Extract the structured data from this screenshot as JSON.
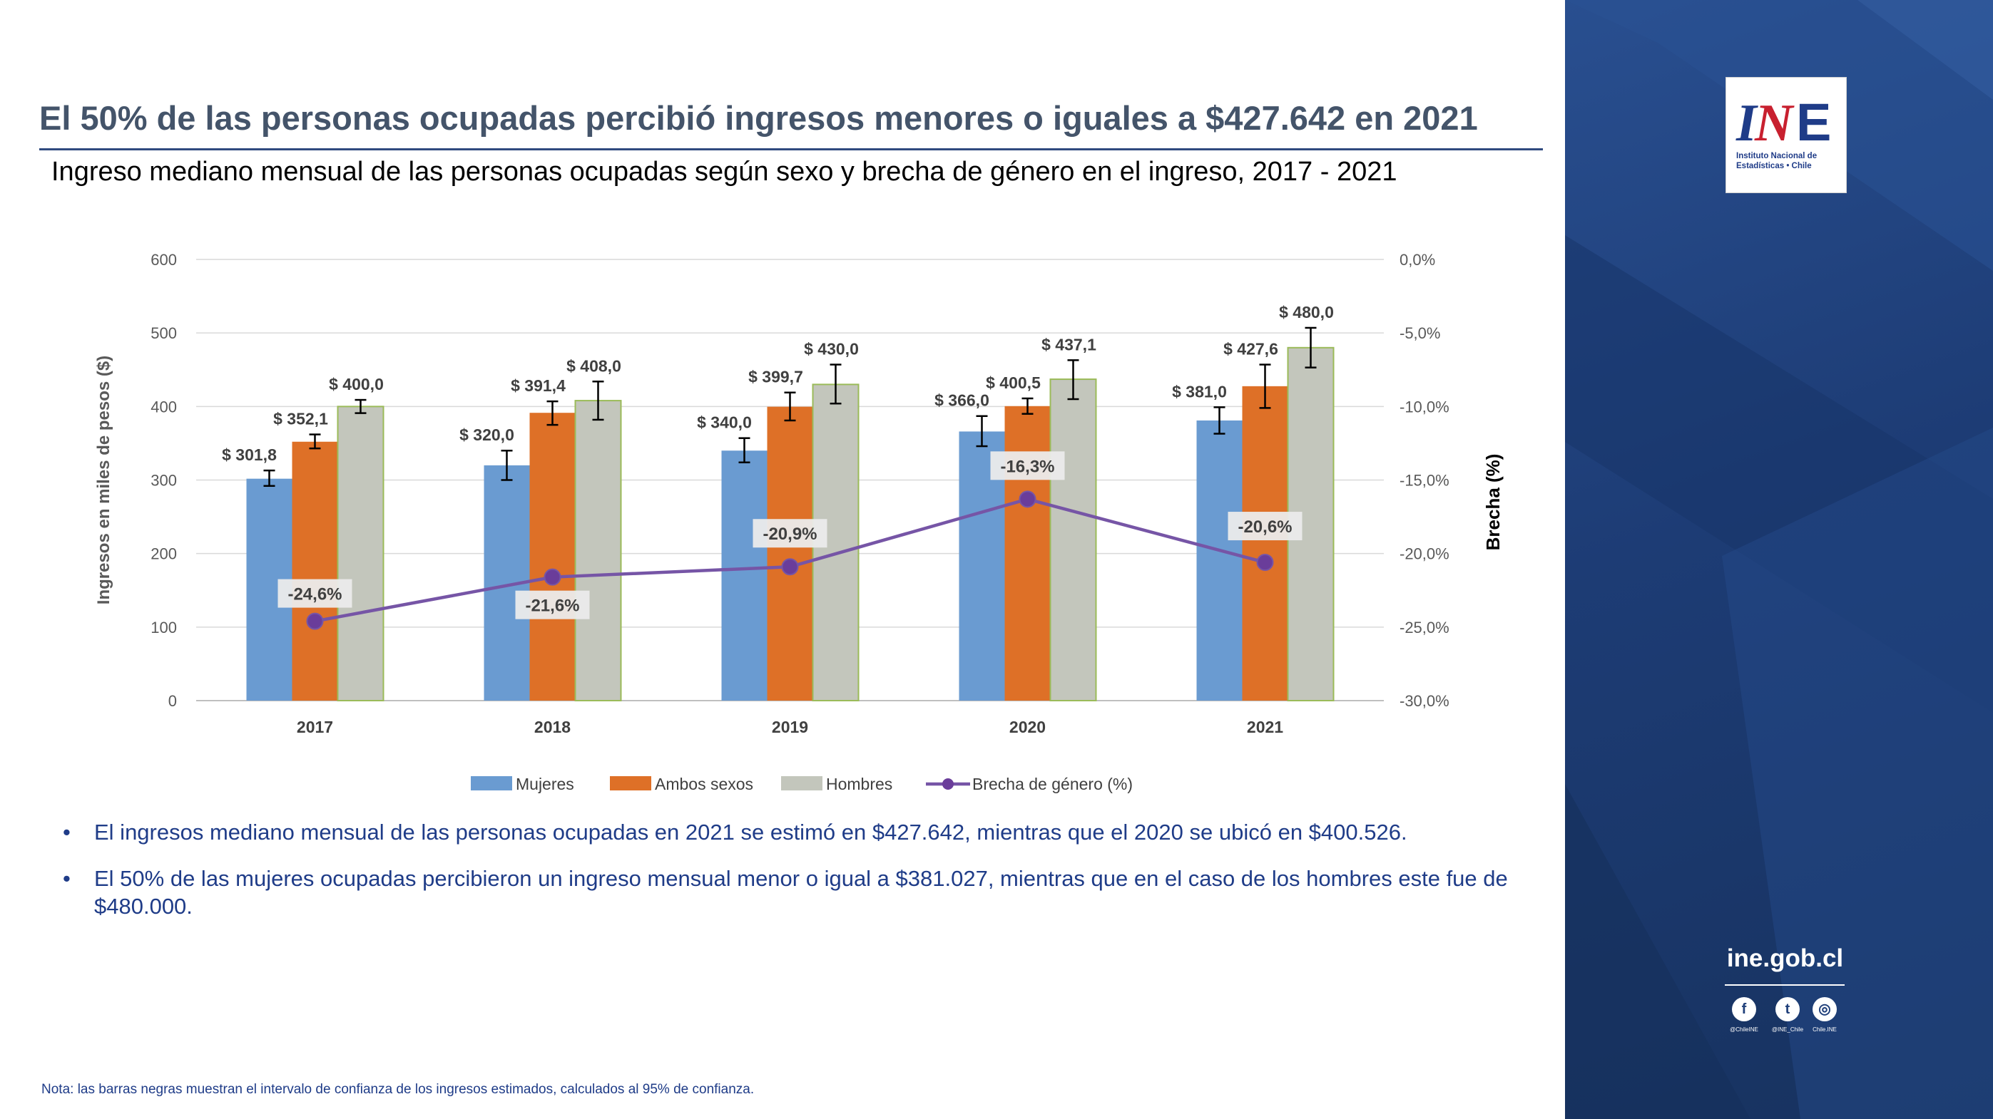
{
  "header": {
    "title": "El 50% de las personas ocupadas percibió ingresos menores o iguales a $427.642 en 2021",
    "subtitle": "Ingreso mediano mensual de las personas ocupadas según sexo y brecha de género en el ingreso, 2017 - 2021"
  },
  "chart_data": {
    "type": "bar",
    "categories": [
      "2017",
      "2018",
      "2019",
      "2020",
      "2021"
    ],
    "ylabel": "Ingresos en miles de pesos ($)",
    "y2label": "Brecha (%)",
    "ylim": [
      0,
      600
    ],
    "yticks": [
      "0",
      "100",
      "200",
      "300",
      "400",
      "500",
      "600"
    ],
    "y2lim": [
      -30,
      0
    ],
    "y2ticks": [
      "-30,0%",
      "-25,0%",
      "-20,0%",
      "-15,0%",
      "-10,0%",
      "-5,0%",
      "0,0%"
    ],
    "grid": true,
    "legend_position": "bottom",
    "series": [
      {
        "name": "Mujeres",
        "color": "#6a9bd1",
        "values": [
          301.8,
          320.0,
          340.0,
          366.0,
          381.0
        ],
        "labels": [
          "$ 301,8",
          "$ 320,0",
          "$ 340,0",
          "$ 366,0",
          "$ 381,0"
        ],
        "ci_low": [
          292,
          300,
          324,
          346,
          363
        ],
        "ci_high": [
          313,
          340,
          357,
          387,
          399
        ]
      },
      {
        "name": "Ambos sexos",
        "color": "#de7027",
        "values": [
          352.1,
          391.4,
          399.7,
          400.5,
          427.6
        ],
        "labels": [
          "$ 352,1",
          "$ 391,4",
          "$ 399,7",
          "$ 400,5",
          "$ 427,6"
        ],
        "ci_low": [
          343,
          375,
          381,
          390,
          398
        ],
        "ci_high": [
          362,
          407,
          419,
          411,
          457
        ]
      },
      {
        "name": "Hombres",
        "color": "#c3c6bc",
        "values": [
          400.0,
          408.0,
          430.0,
          437.1,
          480.0
        ],
        "labels": [
          "$ 400,0",
          "$ 408,0",
          "$ 430,0",
          "$ 437,1",
          "$ 480,0"
        ],
        "ci_low": [
          391,
          382,
          404,
          410,
          453
        ],
        "ci_high": [
          409,
          434,
          457,
          463,
          507
        ]
      },
      {
        "name": "Brecha de género (%)",
        "type": "line",
        "axis": "secondary",
        "color": "#7655a6",
        "values": [
          -24.6,
          -21.6,
          -20.9,
          -16.3,
          -20.6
        ],
        "labels": [
          "-24,6%",
          "-21,6%",
          "-20,9%",
          "-16,3%",
          "-20,6%"
        ]
      }
    ]
  },
  "bullets": [
    "El ingresos mediano mensual de las personas ocupadas en 2021 se estimó en $427.642, mientras que el 2020 se ubicó en $400.526.",
    "El 50% de las mujeres ocupadas percibieron un ingreso mensual menor o igual a $381.027, mientras que en el caso de los hombres este fue de  $480.000."
  ],
  "note": "Nota: las barras negras muestran el intervalo de confianza de los ingresos estimados, calculados al 95% de confianza.",
  "brand": {
    "logo_text": "INE",
    "logo_line1": "Instituto Nacional de",
    "logo_line2": "Estadísticas • Chile",
    "website": "ine.gob.cl",
    "panel_color": "#1f3f7a",
    "social": [
      {
        "icon": "facebook-icon",
        "glyph": "f",
        "handle": "@ChileINE"
      },
      {
        "icon": "twitter-icon",
        "glyph": "t",
        "handle": "@INE_Chile"
      },
      {
        "icon": "instagram-icon",
        "glyph": "◎",
        "handle": "Chile.INE"
      }
    ]
  }
}
